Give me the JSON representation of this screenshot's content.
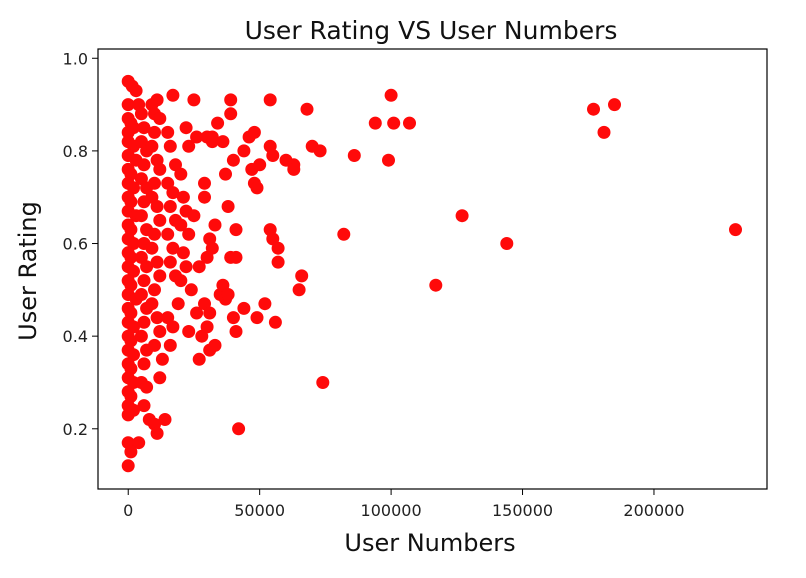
{
  "chart_data": {
    "type": "scatter",
    "title": "User Rating VS User Numbers",
    "xlabel": "User Numbers",
    "ylabel": "User Rating",
    "xlim": [
      -11500,
      243000
    ],
    "ylim": [
      0.07,
      1.02
    ],
    "x_ticks": [
      0,
      50000,
      100000,
      150000,
      200000
    ],
    "x_tick_labels": [
      "0",
      "50000",
      "100000",
      "150000",
      "200000"
    ],
    "y_ticks": [
      0.2,
      0.4,
      0.6,
      0.8,
      1.0
    ],
    "y_tick_labels": [
      "0.2",
      "0.4",
      "0.6",
      "0.8",
      "1.0"
    ],
    "grid": false,
    "legend": "none",
    "marker_color": "#ff0a0a",
    "series": [
      {
        "points": [
          [
            0,
            0.95
          ],
          [
            1500,
            0.94
          ],
          [
            3000,
            0.93
          ],
          [
            0,
            0.9
          ],
          [
            4000,
            0.9
          ],
          [
            0,
            0.87
          ],
          [
            1000,
            0.86
          ],
          [
            2000,
            0.85
          ],
          [
            0,
            0.84
          ],
          [
            0,
            0.82
          ],
          [
            2000,
            0.81
          ],
          [
            0,
            0.79
          ],
          [
            3000,
            0.78
          ],
          [
            0,
            0.76
          ],
          [
            1000,
            0.75
          ],
          [
            0,
            0.73
          ],
          [
            2000,
            0.72
          ],
          [
            0,
            0.7
          ],
          [
            1000,
            0.69
          ],
          [
            0,
            0.67
          ],
          [
            3000,
            0.66
          ],
          [
            0,
            0.64
          ],
          [
            1000,
            0.63
          ],
          [
            0,
            0.61
          ],
          [
            2000,
            0.6
          ],
          [
            0,
            0.58
          ],
          [
            1000,
            0.57
          ],
          [
            0,
            0.55
          ],
          [
            2000,
            0.54
          ],
          [
            0,
            0.52
          ],
          [
            1000,
            0.51
          ],
          [
            0,
            0.49
          ],
          [
            3000,
            0.48
          ],
          [
            0,
            0.46
          ],
          [
            1000,
            0.45
          ],
          [
            0,
            0.43
          ],
          [
            2000,
            0.42
          ],
          [
            0,
            0.4
          ],
          [
            1000,
            0.39
          ],
          [
            0,
            0.37
          ],
          [
            2000,
            0.36
          ],
          [
            0,
            0.34
          ],
          [
            1000,
            0.33
          ],
          [
            0,
            0.31
          ],
          [
            2000,
            0.3
          ],
          [
            0,
            0.28
          ],
          [
            1000,
            0.27
          ],
          [
            0,
            0.25
          ],
          [
            2000,
            0.24
          ],
          [
            0,
            0.23
          ],
          [
            0,
            0.17
          ],
          [
            4000,
            0.17
          ],
          [
            1000,
            0.15
          ],
          [
            0,
            0.12
          ],
          [
            5000,
            0.88
          ],
          [
            6000,
            0.85
          ],
          [
            5000,
            0.82
          ],
          [
            7000,
            0.8
          ],
          [
            6000,
            0.77
          ],
          [
            5000,
            0.74
          ],
          [
            7000,
            0.72
          ],
          [
            6000,
            0.69
          ],
          [
            5000,
            0.66
          ],
          [
            7000,
            0.63
          ],
          [
            6000,
            0.6
          ],
          [
            5000,
            0.57
          ],
          [
            7000,
            0.55
          ],
          [
            6000,
            0.52
          ],
          [
            5000,
            0.49
          ],
          [
            7000,
            0.46
          ],
          [
            6000,
            0.43
          ],
          [
            5000,
            0.4
          ],
          [
            7000,
            0.37
          ],
          [
            6000,
            0.34
          ],
          [
            5000,
            0.3
          ],
          [
            7000,
            0.29
          ],
          [
            6000,
            0.25
          ],
          [
            8000,
            0.22
          ],
          [
            10000,
            0.21
          ],
          [
            11000,
            0.19
          ],
          [
            14000,
            0.22
          ],
          [
            9000,
            0.9
          ],
          [
            10000,
            0.88
          ],
          [
            11000,
            0.91
          ],
          [
            12000,
            0.87
          ],
          [
            10000,
            0.84
          ],
          [
            9000,
            0.81
          ],
          [
            11000,
            0.78
          ],
          [
            12000,
            0.76
          ],
          [
            10000,
            0.73
          ],
          [
            9000,
            0.7
          ],
          [
            11000,
            0.68
          ],
          [
            12000,
            0.65
          ],
          [
            10000,
            0.62
          ],
          [
            9000,
            0.59
          ],
          [
            11000,
            0.56
          ],
          [
            12000,
            0.53
          ],
          [
            10000,
            0.5
          ],
          [
            9000,
            0.47
          ],
          [
            11000,
            0.44
          ],
          [
            12000,
            0.41
          ],
          [
            10000,
            0.38
          ],
          [
            13000,
            0.35
          ],
          [
            12000,
            0.31
          ],
          [
            17000,
            0.92
          ],
          [
            15000,
            0.84
          ],
          [
            16000,
            0.81
          ],
          [
            18000,
            0.77
          ],
          [
            15000,
            0.73
          ],
          [
            17000,
            0.71
          ],
          [
            16000,
            0.68
          ],
          [
            18000,
            0.65
          ],
          [
            15000,
            0.62
          ],
          [
            17000,
            0.59
          ],
          [
            16000,
            0.56
          ],
          [
            18000,
            0.53
          ],
          [
            15000,
            0.44
          ],
          [
            17000,
            0.42
          ],
          [
            16000,
            0.38
          ],
          [
            20000,
            0.75
          ],
          [
            21000,
            0.7
          ],
          [
            22000,
            0.67
          ],
          [
            20000,
            0.64
          ],
          [
            23000,
            0.62
          ],
          [
            21000,
            0.58
          ],
          [
            22000,
            0.55
          ],
          [
            20000,
            0.52
          ],
          [
            19000,
            0.47
          ],
          [
            23000,
            0.41
          ],
          [
            25000,
            0.91
          ],
          [
            22000,
            0.85
          ],
          [
            23000,
            0.81
          ],
          [
            26000,
            0.83
          ],
          [
            25000,
            0.66
          ],
          [
            27000,
            0.55
          ],
          [
            24000,
            0.5
          ],
          [
            26000,
            0.45
          ],
          [
            28000,
            0.4
          ],
          [
            27000,
            0.35
          ],
          [
            30000,
            0.83
          ],
          [
            32000,
            0.82
          ],
          [
            29000,
            0.73
          ],
          [
            29000,
            0.7
          ],
          [
            31000,
            0.61
          ],
          [
            30000,
            0.57
          ],
          [
            29000,
            0.47
          ],
          [
            31000,
            0.45
          ],
          [
            30000,
            0.42
          ],
          [
            31000,
            0.37
          ],
          [
            32000,
            0.83
          ],
          [
            33000,
            0.64
          ],
          [
            32000,
            0.59
          ],
          [
            35000,
            0.49
          ],
          [
            33000,
            0.38
          ],
          [
            34000,
            0.86
          ],
          [
            36000,
            0.82
          ],
          [
            37000,
            0.75
          ],
          [
            38000,
            0.68
          ],
          [
            36000,
            0.51
          ],
          [
            37000,
            0.48
          ],
          [
            39000,
            0.57
          ],
          [
            38000,
            0.49
          ],
          [
            39000,
            0.91
          ],
          [
            39000,
            0.88
          ],
          [
            40000,
            0.78
          ],
          [
            41000,
            0.63
          ],
          [
            41000,
            0.57
          ],
          [
            40000,
            0.44
          ],
          [
            41000,
            0.41
          ],
          [
            42000,
            0.2
          ],
          [
            44000,
            0.8
          ],
          [
            46000,
            0.83
          ],
          [
            47000,
            0.76
          ],
          [
            48000,
            0.73
          ],
          [
            49000,
            0.72
          ],
          [
            48000,
            0.84
          ],
          [
            50000,
            0.77
          ],
          [
            44000,
            0.46
          ],
          [
            49000,
            0.44
          ],
          [
            52000,
            0.47
          ],
          [
            54000,
            0.91
          ],
          [
            54000,
            0.81
          ],
          [
            55000,
            0.79
          ],
          [
            54000,
            0.63
          ],
          [
            55000,
            0.61
          ],
          [
            57000,
            0.59
          ],
          [
            57000,
            0.56
          ],
          [
            56000,
            0.43
          ],
          [
            60000,
            0.78
          ],
          [
            63000,
            0.77
          ],
          [
            63000,
            0.76
          ],
          [
            66000,
            0.53
          ],
          [
            65000,
            0.5
          ],
          [
            68000,
            0.89
          ],
          [
            70000,
            0.81
          ],
          [
            73000,
            0.8
          ],
          [
            74000,
            0.3
          ],
          [
            82000,
            0.62
          ],
          [
            86000,
            0.79
          ],
          [
            94000,
            0.86
          ],
          [
            99000,
            0.78
          ],
          [
            100000,
            0.92
          ],
          [
            101000,
            0.86
          ],
          [
            107000,
            0.86
          ],
          [
            117000,
            0.51
          ],
          [
            127000,
            0.66
          ],
          [
            144000,
            0.6
          ],
          [
            177000,
            0.89
          ],
          [
            181000,
            0.84
          ],
          [
            185000,
            0.9
          ],
          [
            231000,
            0.63
          ]
        ]
      }
    ]
  }
}
